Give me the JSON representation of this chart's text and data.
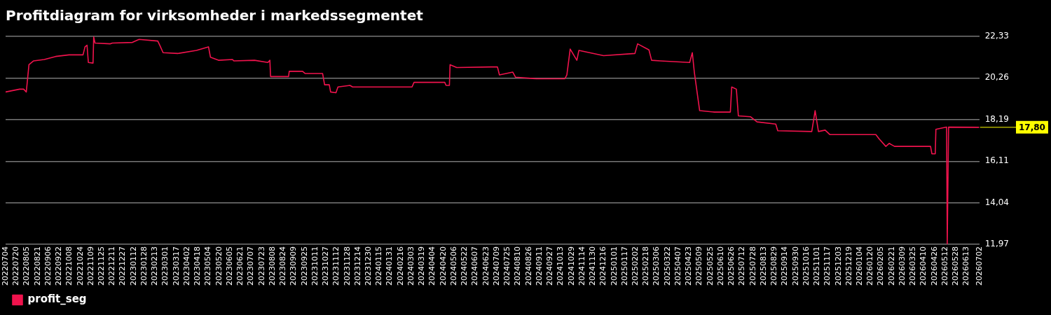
{
  "chart_data": {
    "type": "line",
    "title": "Profitdiagram for virksomheder i markedssegmentet",
    "xlim": [
      "2022-07-04",
      "2026-07-02"
    ],
    "xticks": [
      {
        "value": "2022-07-04",
        "label": "20220704"
      },
      {
        "value": "2022-07-20",
        "label": "20220720"
      },
      {
        "value": "2022-08-05",
        "label": "20220805"
      },
      {
        "value": "2022-08-21",
        "label": "20220821"
      },
      {
        "value": "2022-09-06",
        "label": "20220906"
      },
      {
        "value": "2022-09-22",
        "label": "20220922"
      },
      {
        "value": "2022-10-08",
        "label": "20221008"
      },
      {
        "value": "2022-10-24",
        "label": "20221024"
      },
      {
        "value": "2022-11-09",
        "label": "20221109"
      },
      {
        "value": "2022-11-25",
        "label": "20221125"
      },
      {
        "value": "2022-12-11",
        "label": "20221211"
      },
      {
        "value": "2022-12-27",
        "label": "20221227"
      },
      {
        "value": "2023-01-12",
        "label": "20230112"
      },
      {
        "value": "2023-01-28",
        "label": "20230128"
      },
      {
        "value": "2023-02-13",
        "label": "20230213"
      },
      {
        "value": "2023-03-01",
        "label": "20230301"
      },
      {
        "value": "2023-03-17",
        "label": "20230317"
      },
      {
        "value": "2023-04-02",
        "label": "20230402"
      },
      {
        "value": "2023-04-18",
        "label": "20230418"
      },
      {
        "value": "2023-05-04",
        "label": "20230504"
      },
      {
        "value": "2023-05-20",
        "label": "20230520"
      },
      {
        "value": "2023-06-05",
        "label": "20230605"
      },
      {
        "value": "2023-06-21",
        "label": "20230621"
      },
      {
        "value": "2023-07-07",
        "label": "20230707"
      },
      {
        "value": "2023-07-23",
        "label": "20230723"
      },
      {
        "value": "2023-08-08",
        "label": "20230808"
      },
      {
        "value": "2023-08-24",
        "label": "20230824"
      },
      {
        "value": "2023-09-09",
        "label": "20230909"
      },
      {
        "value": "2023-09-25",
        "label": "20230925"
      },
      {
        "value": "2023-10-11",
        "label": "20231011"
      },
      {
        "value": "2023-10-27",
        "label": "20231027"
      },
      {
        "value": "2023-11-12",
        "label": "20231112"
      },
      {
        "value": "2023-11-28",
        "label": "20231128"
      },
      {
        "value": "2023-12-14",
        "label": "20231214"
      },
      {
        "value": "2023-12-30",
        "label": "20231230"
      },
      {
        "value": "2024-01-15",
        "label": "20240115"
      },
      {
        "value": "2024-01-31",
        "label": "20240131"
      },
      {
        "value": "2024-02-16",
        "label": "20240216"
      },
      {
        "value": "2024-03-03",
        "label": "20240303"
      },
      {
        "value": "2024-03-19",
        "label": "20240319"
      },
      {
        "value": "2024-04-04",
        "label": "20240404"
      },
      {
        "value": "2024-04-20",
        "label": "20240420"
      },
      {
        "value": "2024-05-06",
        "label": "20240506"
      },
      {
        "value": "2024-05-22",
        "label": "20240522"
      },
      {
        "value": "2024-06-07",
        "label": "20240607"
      },
      {
        "value": "2024-06-23",
        "label": "20240623"
      },
      {
        "value": "2024-07-09",
        "label": "20240709"
      },
      {
        "value": "2024-07-25",
        "label": "20240725"
      },
      {
        "value": "2024-08-10",
        "label": "20240810"
      },
      {
        "value": "2024-08-26",
        "label": "20240826"
      },
      {
        "value": "2024-09-11",
        "label": "20240911"
      },
      {
        "value": "2024-09-27",
        "label": "20240927"
      },
      {
        "value": "2024-10-13",
        "label": "20241013"
      },
      {
        "value": "2024-10-29",
        "label": "20241029"
      },
      {
        "value": "2024-11-14",
        "label": "20241114"
      },
      {
        "value": "2024-11-30",
        "label": "20241130"
      },
      {
        "value": "2024-12-16",
        "label": "20241216"
      },
      {
        "value": "2025-01-01",
        "label": "20250101"
      },
      {
        "value": "2025-01-17",
        "label": "20250117"
      },
      {
        "value": "2025-02-02",
        "label": "20250202"
      },
      {
        "value": "2025-02-18",
        "label": "20250218"
      },
      {
        "value": "2025-03-06",
        "label": "20250306"
      },
      {
        "value": "2025-03-22",
        "label": "20250322"
      },
      {
        "value": "2025-04-07",
        "label": "20250407"
      },
      {
        "value": "2025-04-23",
        "label": "20250423"
      },
      {
        "value": "2025-05-09",
        "label": "20250509"
      },
      {
        "value": "2025-05-25",
        "label": "20250525"
      },
      {
        "value": "2025-06-10",
        "label": "20250610"
      },
      {
        "value": "2025-06-26",
        "label": "20250626"
      },
      {
        "value": "2025-07-12",
        "label": "20250712"
      },
      {
        "value": "2025-07-28",
        "label": "20250728"
      },
      {
        "value": "2025-08-13",
        "label": "20250813"
      },
      {
        "value": "2025-08-29",
        "label": "20250829"
      },
      {
        "value": "2025-09-14",
        "label": "20250914"
      },
      {
        "value": "2025-09-30",
        "label": "20250930"
      },
      {
        "value": "2025-10-16",
        "label": "20251016"
      },
      {
        "value": "2025-11-01",
        "label": "20251101"
      },
      {
        "value": "2025-11-17",
        "label": "20251117"
      },
      {
        "value": "2025-12-03",
        "label": "20251203"
      },
      {
        "value": "2025-12-19",
        "label": "20251219"
      },
      {
        "value": "2026-01-04",
        "label": "20260104"
      },
      {
        "value": "2026-01-20",
        "label": "20260120"
      },
      {
        "value": "2026-02-05",
        "label": "20260205"
      },
      {
        "value": "2026-02-21",
        "label": "20260221"
      },
      {
        "value": "2026-03-09",
        "label": "20260309"
      },
      {
        "value": "2026-03-25",
        "label": "20260325"
      },
      {
        "value": "2026-04-10",
        "label": "20260410"
      },
      {
        "value": "2026-04-26",
        "label": "20260426"
      },
      {
        "value": "2026-05-12",
        "label": "20260512"
      },
      {
        "value": "2026-05-28",
        "label": "20260528"
      },
      {
        "value": "2026-06-13",
        "label": "20260613"
      },
      {
        "value": "2026-07-02",
        "label": "20260702"
      }
    ],
    "ylim": [
      11.97,
      22.33
    ],
    "yticks": [
      {
        "value": 11.97,
        "label": "11,97"
      },
      {
        "value": 14.04,
        "label": "14,04"
      },
      {
        "value": 16.11,
        "label": "16,11"
      },
      {
        "value": 18.19,
        "label": "18,19"
      },
      {
        "value": 20.26,
        "label": "20,26"
      },
      {
        "value": 22.33,
        "label": "22,33"
      }
    ],
    "grid": "y",
    "legend": "bottom",
    "marker": "none",
    "line_style": "solid",
    "series": [
      {
        "name": "profit_seg",
        "color": "#f0134d",
        "x": [
          "2022-07-04",
          "2022-07-25",
          "2022-07-31",
          "2022-08-04",
          "2022-08-08",
          "2022-08-15",
          "2022-08-31",
          "2022-09-17",
          "2022-10-07",
          "2022-10-28",
          "2022-10-31",
          "2022-11-03",
          "2022-11-05",
          "2022-11-12",
          "2022-11-13",
          "2022-11-15",
          "2022-12-08",
          "2022-12-11",
          "2023-01-10",
          "2023-01-20",
          "2023-02-17",
          "2023-02-20",
          "2023-02-25",
          "2023-03-19",
          "2023-04-16",
          "2023-05-04",
          "2023-05-07",
          "2023-05-19",
          "2023-06-09",
          "2023-06-11",
          "2023-07-12",
          "2023-08-01",
          "2023-08-04",
          "2023-08-05",
          "2023-09-01",
          "2023-09-02",
          "2023-09-22",
          "2023-09-26",
          "2023-10-22",
          "2023-10-25",
          "2023-11-01",
          "2023-11-03",
          "2023-11-11",
          "2023-11-14",
          "2023-12-02",
          "2023-12-06",
          "2024-03-04",
          "2024-03-07",
          "2024-04-22",
          "2024-04-24",
          "2024-04-29",
          "2024-04-30",
          "2024-05-10",
          "2024-06-30",
          "2024-07-10",
          "2024-07-13",
          "2024-08-02",
          "2024-08-06",
          "2024-09-06",
          "2024-10-19",
          "2024-10-22",
          "2024-10-27",
          "2024-11-06",
          "2024-11-09",
          "2024-12-16",
          "2025-02-01",
          "2025-02-05",
          "2025-02-22",
          "2025-02-26",
          "2025-03-11",
          "2025-04-24",
          "2025-04-28",
          "2025-05-01",
          "2025-05-09",
          "2025-05-31",
          "2025-06-24",
          "2025-06-26",
          "2025-07-03",
          "2025-07-06",
          "2025-07-24",
          "2025-08-03",
          "2025-08-31",
          "2025-09-03",
          "2025-10-24",
          "2025-10-29",
          "2025-11-03",
          "2025-11-13",
          "2025-11-20",
          "2026-01-28",
          "2026-02-02",
          "2026-02-12",
          "2026-02-17",
          "2026-02-25",
          "2026-04-20",
          "2026-04-22",
          "2026-04-27",
          "2026-04-28",
          "2026-05-14",
          "2026-05-15",
          "2026-05-17",
          "2026-07-02"
        ],
        "values": [
          19.56,
          19.7,
          19.7,
          19.56,
          20.92,
          21.11,
          21.18,
          21.33,
          21.41,
          21.41,
          21.81,
          21.89,
          21.03,
          21.0,
          22.3,
          22.0,
          21.96,
          22.0,
          22.03,
          22.18,
          22.1,
          21.89,
          21.52,
          21.48,
          21.63,
          21.81,
          21.29,
          21.14,
          21.18,
          21.11,
          21.14,
          21.03,
          21.14,
          20.33,
          20.33,
          20.59,
          20.59,
          20.48,
          20.48,
          19.92,
          19.92,
          19.56,
          19.52,
          19.81,
          19.89,
          19.81,
          19.81,
          20.04,
          20.04,
          19.89,
          19.89,
          20.92,
          20.78,
          20.81,
          20.81,
          20.41,
          20.55,
          20.3,
          20.22,
          20.22,
          20.41,
          21.7,
          21.14,
          21.63,
          21.37,
          21.48,
          21.96,
          21.66,
          21.14,
          21.11,
          21.03,
          21.52,
          20.55,
          18.63,
          18.56,
          18.56,
          19.81,
          19.7,
          18.37,
          18.33,
          18.07,
          17.96,
          17.63,
          17.59,
          18.63,
          17.59,
          17.66,
          17.44,
          17.44,
          17.22,
          16.85,
          17.0,
          16.85,
          16.85,
          16.48,
          16.48,
          17.7,
          17.81,
          12.0,
          17.81,
          17.8
        ]
      }
    ],
    "annotations": [
      {
        "text": "17,80",
        "x": "2026-07-02",
        "y": 17.8
      }
    ]
  }
}
